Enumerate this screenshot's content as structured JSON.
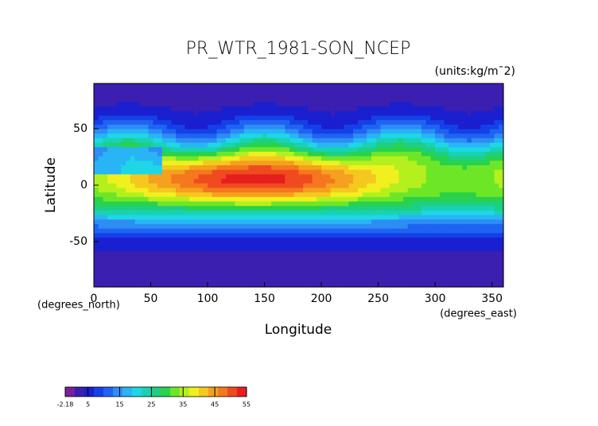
{
  "chart_data": {
    "type": "contour-map",
    "title": "PR_WTR_1981-SON_NCEP",
    "subtitle": "(units:kg/m¯2)",
    "x_label": "Longitude",
    "y_label": "Latitude",
    "x_unit_label": "(degrees_east)",
    "y_unit_label": "(degrees_north)",
    "xlim": [
      0,
      360
    ],
    "ylim": [
      -90,
      90
    ],
    "xticks": [
      0,
      50,
      100,
      150,
      200,
      250,
      300,
      350
    ],
    "yticks": [
      -50,
      0,
      50
    ],
    "colorbar": {
      "ticks": [
        -2.18,
        5,
        15,
        25,
        35,
        45,
        55
      ],
      "colors": [
        "#7a1fa0",
        "#3b1fb0",
        "#1a1fcf",
        "#1440e8",
        "#1e64f0",
        "#2e8cf5",
        "#28b4f5",
        "#1ed7e6",
        "#19d2b4",
        "#1ecf82",
        "#28d24b",
        "#6ee628",
        "#b4f01e",
        "#f0f01e",
        "#f5c81e",
        "#f5a01e",
        "#f5781e",
        "#f04b1e",
        "#e61e1e"
      ]
    }
  }
}
